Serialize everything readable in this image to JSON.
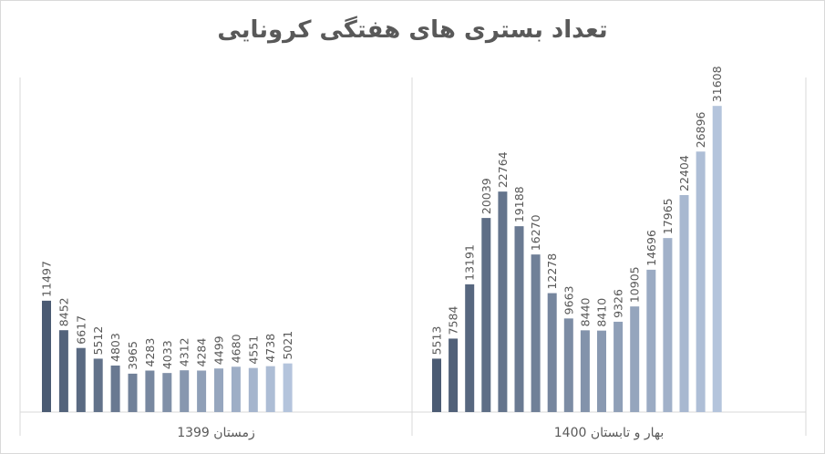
{
  "chart_data": {
    "type": "bar",
    "title": "تعداد بستری های  هفتگی کرونایی",
    "ylim": [
      0,
      35000
    ],
    "grid": false,
    "colors": {
      "dark": "#4b5b73",
      "light": "#b4c4dc"
    },
    "groups": [
      {
        "label": "زمستان 1399",
        "values": [
          11497,
          8452,
          6617,
          5512,
          4803,
          3965,
          4283,
          4033,
          4312,
          4284,
          4499,
          4680,
          4551,
          4738,
          5021
        ]
      },
      {
        "label": "بهار و تابستان 1400",
        "values": [
          5513,
          7584,
          13191,
          20039,
          22764,
          19188,
          16270,
          12278,
          9663,
          8440,
          8410,
          9326,
          10905,
          14696,
          17965,
          22404,
          26896,
          31608
        ]
      }
    ]
  }
}
